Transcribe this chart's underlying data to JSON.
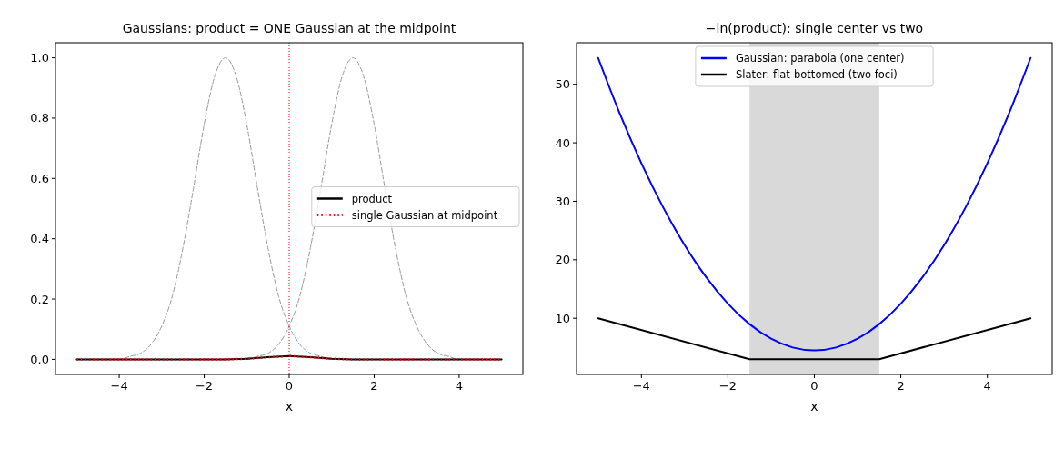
{
  "chart_data": [
    {
      "type": "line",
      "title": "Gaussians: product = ONE Gaussian at the midpoint",
      "xlabel": "x",
      "xlim": [
        -5.5,
        5.5
      ],
      "ylim": [
        -0.05,
        1.05
      ],
      "xticks": [
        -4,
        -2,
        0,
        2,
        4
      ],
      "yticks": [
        {
          "value": 0,
          "label": "0.0"
        },
        {
          "value": 0.2,
          "label": "0.2"
        },
        {
          "value": 0.4,
          "label": "0.4"
        },
        {
          "value": 0.6,
          "label": "0.6"
        },
        {
          "value": 0.8,
          "label": "0.8"
        },
        {
          "value": 1,
          "label": "1.0"
        }
      ],
      "grid": false,
      "legend": "center right",
      "ref_lines": [
        {
          "axis": "x",
          "value": 0,
          "color": "#ff0000",
          "line_style": "dotted"
        }
      ],
      "series": [
        {
          "color": "#999999",
          "line_style": "dashed",
          "x": [
            -5,
            -4.75,
            -4.5,
            -4.25,
            -4,
            -3.75,
            -3.5,
            -3.25,
            -3,
            -2.75,
            -2.5,
            -2.25,
            -2,
            -1.75,
            -1.5,
            -1.25,
            -1,
            -0.75,
            -0.5,
            -0.25,
            0,
            0.25,
            0.5,
            0.75,
            1,
            1.25,
            1.5,
            1.75,
            2,
            2.25,
            2.5,
            2.75,
            3,
            3.25,
            3.5,
            3.75,
            4,
            4.25,
            4.5,
            4.75,
            5
          ],
          "values": [
            0,
            0,
            0,
            0,
            0,
            0.01,
            0.02,
            0.05,
            0.11,
            0.21,
            0.37,
            0.57,
            0.78,
            0.94,
            1,
            0.94,
            0.78,
            0.57,
            0.37,
            0.21,
            0.11,
            0.05,
            0.02,
            0.01,
            0,
            0,
            0,
            0,
            0,
            0,
            0,
            0,
            0,
            0,
            0,
            0,
            0,
            0,
            0,
            0,
            0
          ]
        },
        {
          "color": "#999999",
          "line_style": "dashed",
          "x": [
            -5,
            -4.75,
            -4.5,
            -4.25,
            -4,
            -3.75,
            -3.5,
            -3.25,
            -3,
            -2.75,
            -2.5,
            -2.25,
            -2,
            -1.75,
            -1.5,
            -1.25,
            -1,
            -0.75,
            -0.5,
            -0.25,
            0,
            0.25,
            0.5,
            0.75,
            1,
            1.25,
            1.5,
            1.75,
            2,
            2.25,
            2.5,
            2.75,
            3,
            3.25,
            3.5,
            3.75,
            4,
            4.25,
            4.5,
            4.75,
            5
          ],
          "values": [
            0,
            0,
            0,
            0,
            0,
            0,
            0,
            0,
            0,
            0,
            0,
            0,
            0,
            0,
            0,
            0,
            0,
            0.01,
            0.02,
            0.05,
            0.11,
            0.21,
            0.37,
            0.57,
            0.78,
            0.94,
            1,
            0.94,
            0.78,
            0.57,
            0.37,
            0.21,
            0.11,
            0.05,
            0.02,
            0.01,
            0,
            0,
            0,
            0,
            0
          ]
        },
        {
          "name": "product",
          "color": "#000000",
          "line_style": "solid",
          "x": [
            -5,
            -1.5,
            -1,
            -0.5,
            0,
            0.5,
            1,
            1.5,
            5
          ],
          "values": [
            0,
            0,
            0.002,
            0.007,
            0.011,
            0.007,
            0.002,
            0,
            0
          ]
        },
        {
          "name": "single Gaussian at midpoint",
          "color": "#ff0000",
          "line_style": "dotted",
          "x": [
            -5,
            -1.5,
            -1,
            -0.5,
            0,
            0.5,
            1,
            1.5,
            5
          ],
          "values": [
            0,
            0,
            0.002,
            0.007,
            0.011,
            0.007,
            0.002,
            0,
            0
          ]
        }
      ]
    },
    {
      "type": "line",
      "title": "−ln(product): single center vs two",
      "xlabel": "x",
      "xlim": [
        -5.5,
        5.5
      ],
      "ylim": [
        0.4,
        57.1
      ],
      "xticks": [
        -4,
        -2,
        0,
        2,
        4
      ],
      "yticks": [
        10,
        20,
        30,
        40,
        50
      ],
      "grid": false,
      "legend": "top",
      "bands": [
        {
          "axis": "x",
          "from": -1.5,
          "to": 1.5,
          "color": "#d9d9d9"
        }
      ],
      "series": [
        {
          "name": "Gaussian: parabola (one center)",
          "color": "#0000ff",
          "line_style": "solid",
          "x": [
            -5,
            -4.5,
            -4,
            -3.5,
            -3,
            -2.5,
            -2,
            -1.5,
            -1,
            -0.5,
            0,
            0.5,
            1,
            1.5,
            2,
            2.5,
            3,
            3.5,
            4,
            4.5,
            5
          ],
          "values": [
            54.5,
            45,
            36.5,
            29,
            22.5,
            17,
            12.5,
            9,
            6.5,
            5,
            4.5,
            5,
            6.5,
            9,
            12.5,
            17,
            22.5,
            29,
            36.5,
            45,
            54.5
          ]
        },
        {
          "name": "Slater: flat-bottomed (two foci)",
          "color": "#000000",
          "line_style": "solid",
          "x": [
            -5,
            -1.5,
            1.5,
            5
          ],
          "values": [
            10,
            3,
            3,
            10
          ]
        }
      ]
    }
  ]
}
